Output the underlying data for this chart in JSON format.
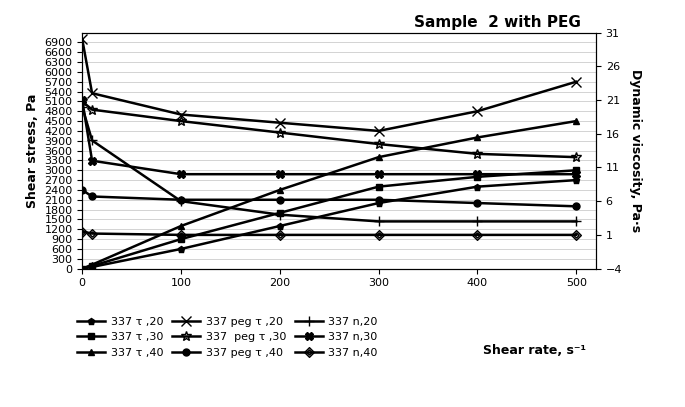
{
  "title": "Sample  2 with PEG",
  "ylabel_left": "Shear stress, Pa",
  "ylabel_right": "Dynamic viscosity, Pa·s",
  "xlabel": "Shear rate, s⁻¹",
  "x": [
    0,
    10,
    100,
    200,
    300,
    400,
    500
  ],
  "tau_20": [
    0,
    50,
    600,
    1300,
    2000,
    2500,
    2700
  ],
  "tau_30": [
    0,
    80,
    900,
    1700,
    2500,
    2800,
    3000
  ],
  "tau_40": [
    0,
    120,
    1300,
    2400,
    3400,
    4000,
    4500
  ],
  "peg_tau_20": [
    7000,
    5350,
    4700,
    4450,
    4200,
    4800,
    5700
  ],
  "peg_tau_30": [
    5100,
    4850,
    4500,
    4150,
    3800,
    3500,
    3400
  ],
  "peg_tau_40": [
    2400,
    2200,
    2100,
    2100,
    2100,
    2000,
    1900
  ],
  "n_20": [
    20,
    15,
    6,
    4,
    3,
    3,
    3
  ],
  "n_30": [
    21,
    12,
    10,
    10,
    10,
    10,
    10
  ],
  "n_40": [
    1.5,
    1.2,
    1.0,
    1.0,
    1.0,
    1.0,
    1.0
  ],
  "ylim_left": [
    0,
    7200
  ],
  "ylim_right": [
    -4,
    31
  ],
  "xlim": [
    0,
    520
  ],
  "yticks_left": [
    0,
    300,
    600,
    900,
    1200,
    1500,
    1800,
    2100,
    2400,
    2700,
    3000,
    3300,
    3600,
    3900,
    4200,
    4500,
    4800,
    5100,
    5400,
    5700,
    6000,
    6300,
    6600,
    6900
  ],
  "yticks_right": [
    -4,
    1,
    6,
    11,
    16,
    21,
    26,
    31
  ],
  "xticks": [
    0,
    100,
    200,
    300,
    400,
    500
  ],
  "labels": {
    "tau_20": "337 τ ,20",
    "tau_30": "337 τ ,30",
    "tau_40": "337 τ ,40",
    "peg_tau_20": "337 peg τ ,20",
    "peg_tau_30": "337  peg τ ,30",
    "peg_tau_40": "337 peg τ ,40",
    "n_20": "337 n,20",
    "n_30": "337 n,30",
    "n_40": "337 n,40"
  }
}
